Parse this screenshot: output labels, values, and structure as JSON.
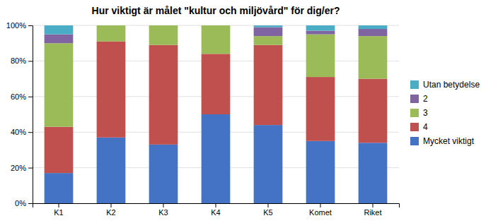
{
  "chart_data": {
    "type": "bar",
    "stacked": true,
    "title": "Hur viktigt är målet \"kultur och miljövård\" för dig/er?",
    "categories": [
      "K1",
      "K2",
      "K3",
      "K4",
      "K5",
      "Komet",
      "Riket"
    ],
    "series": [
      {
        "name": "Mycket viktigt",
        "color": "#4472C4",
        "values": [
          17,
          37,
          33,
          50,
          44,
          35,
          34
        ]
      },
      {
        "name": "4",
        "color": "#C0504D",
        "values": [
          26,
          54,
          56,
          34,
          45,
          36,
          36
        ]
      },
      {
        "name": "3",
        "color": "#9BBB59",
        "values": [
          47,
          9,
          11,
          16,
          5,
          24,
          24
        ]
      },
      {
        "name": "2",
        "color": "#8064A2",
        "values": [
          5,
          0,
          0,
          0,
          5,
          2,
          4
        ]
      },
      {
        "name": "Utan betydelse",
        "color": "#4BACC6",
        "values": [
          5,
          0,
          0,
          0,
          1,
          3,
          2
        ]
      }
    ],
    "ylim": [
      0,
      100
    ],
    "yticks": [
      {
        "value": 0,
        "label": "0%"
      },
      {
        "value": 20,
        "label": "20%"
      },
      {
        "value": 40,
        "label": "40%"
      },
      {
        "value": 60,
        "label": "60%"
      },
      {
        "value": 80,
        "label": "80%"
      },
      {
        "value": 100,
        "label": "100%"
      }
    ],
    "grid": true,
    "legend": "right"
  }
}
